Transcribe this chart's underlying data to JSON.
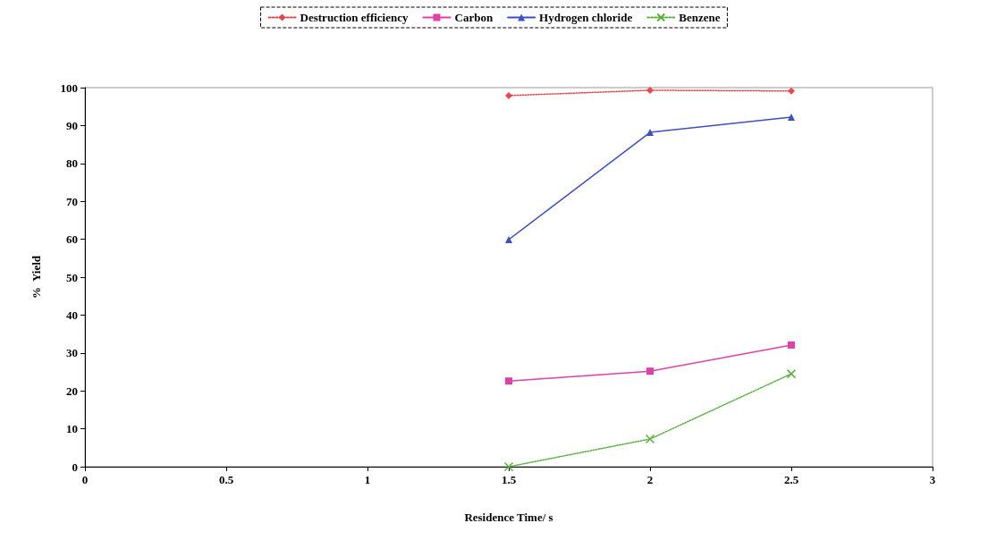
{
  "chart_data": {
    "type": "line",
    "xlabel": "Residence Time/ s",
    "ylabel": "%  Yield",
    "x": [
      1.5,
      2,
      2.5
    ],
    "series": [
      {
        "name": "Destruction efficiency",
        "color": "#e8474c",
        "marker": "diamond",
        "line_style": "dotted",
        "values": [
          97.9,
          99.3,
          99.1
        ]
      },
      {
        "name": "Carbon",
        "color": "#e040a8",
        "marker": "square",
        "line_style": "solid",
        "values": [
          22.6,
          25.2,
          32.1
        ]
      },
      {
        "name": "Hydrogen chloride",
        "color": "#3c50c0",
        "marker": "triangle",
        "line_style": "solid",
        "values": [
          59.9,
          88.2,
          92.2
        ]
      },
      {
        "name": "Benzene",
        "color": "#5cb040",
        "marker": "cross",
        "line_style": "dotted",
        "values": [
          0,
          7.3,
          24.5
        ]
      }
    ],
    "xlim": [
      0,
      3
    ],
    "xticks": [
      0,
      0.5,
      1,
      1.5,
      2,
      2.5,
      3
    ],
    "ylim": [
      0,
      100
    ],
    "yticks": [
      0,
      10,
      20,
      30,
      40,
      50,
      60,
      70,
      80,
      90,
      100
    ],
    "grid": false,
    "legend": "top"
  }
}
